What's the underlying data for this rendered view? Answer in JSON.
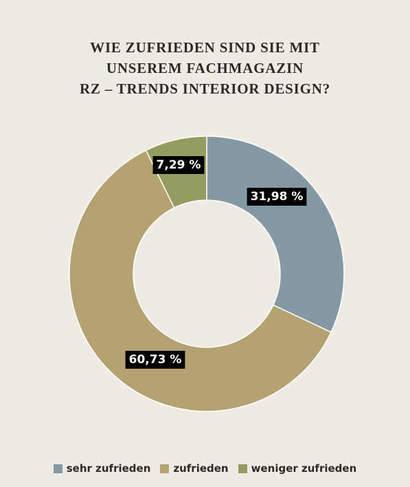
{
  "chart_data": {
    "type": "donut",
    "title": "WIE ZUFRIEDEN SIND SIE MIT\nUNSEREM FACHMAGAZIN\nRZ – TRENDS INTERIOR DESIGN?",
    "categories": [
      "sehr zufrieden",
      "zufrieden",
      "weniger zufrieden"
    ],
    "values": [
      31.98,
      60.73,
      7.29
    ],
    "value_labels": [
      "31,98 %",
      "60,73 %",
      "7,29 %"
    ],
    "colors": [
      "#8499a3",
      "#b5a271",
      "#949c5e"
    ],
    "legend": "bottom"
  }
}
